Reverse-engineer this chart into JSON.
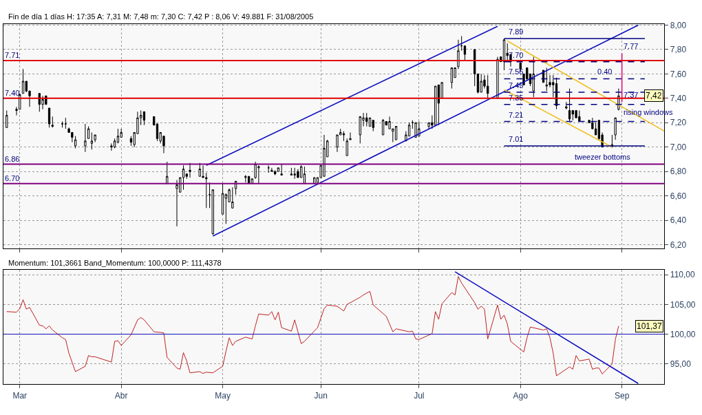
{
  "chart_data": [
    {
      "type": "candlestick",
      "title": "Fin de día 1 días H: 17:35 A: 7,31 M: 7,48 m: 7,30 C: 7,42 P : 8,06 V: 49.881 F: 31/08/2005",
      "color": "#000000",
      "x": [
        "2005-02-25",
        "2005-02-28",
        "2005-03-01",
        "2005-03-02",
        "2005-03-03",
        "2005-03-04",
        "2005-03-07",
        "2005-03-08",
        "2005-03-09",
        "2005-03-10",
        "2005-03-11",
        "2005-03-14",
        "2005-03-15",
        "2005-03-16",
        "2005-03-17",
        "2005-03-18",
        "2005-03-21",
        "2005-03-22",
        "2005-03-23",
        "2005-03-24",
        "2005-03-29",
        "2005-03-30",
        "2005-03-31",
        "2005-04-01",
        "2005-04-04",
        "2005-04-05",
        "2005-04-06",
        "2005-04-07",
        "2005-04-08",
        "2005-04-11",
        "2005-04-12",
        "2005-04-13",
        "2005-04-14",
        "2005-04-15",
        "2005-04-18",
        "2005-04-19",
        "2005-04-20",
        "2005-04-21",
        "2005-04-22",
        "2005-04-25",
        "2005-04-26",
        "2005-04-27",
        "2005-04-28",
        "2005-04-29",
        "2005-05-02",
        "2005-05-03",
        "2005-05-04",
        "2005-05-05",
        "2005-05-06",
        "2005-05-09",
        "2005-05-10",
        "2005-05-11",
        "2005-05-12",
        "2005-05-13",
        "2005-05-16",
        "2005-05-17",
        "2005-05-18",
        "2005-05-19",
        "2005-05-20",
        "2005-05-23",
        "2005-05-24",
        "2005-05-25",
        "2005-05-26",
        "2005-05-27",
        "2005-05-30",
        "2005-05-31",
        "2005-06-01",
        "2005-06-02",
        "2005-06-03",
        "2005-06-06",
        "2005-06-07",
        "2005-06-08",
        "2005-06-09",
        "2005-06-10",
        "2005-06-13",
        "2005-06-14",
        "2005-06-15",
        "2005-06-16",
        "2005-06-17",
        "2005-06-20",
        "2005-06-21",
        "2005-06-22",
        "2005-06-23",
        "2005-06-24",
        "2005-06-27",
        "2005-06-28",
        "2005-06-29",
        "2005-06-30",
        "2005-07-01",
        "2005-07-04",
        "2005-07-05",
        "2005-07-06",
        "2005-07-07",
        "2005-07-08",
        "2005-07-11",
        "2005-07-12",
        "2005-07-13",
        "2005-07-14",
        "2005-07-15",
        "2005-07-18",
        "2005-07-19",
        "2005-07-20",
        "2005-07-21",
        "2005-07-22",
        "2005-07-25",
        "2005-07-26",
        "2005-07-27",
        "2005-07-28",
        "2005-07-29",
        "2005-08-01",
        "2005-08-02",
        "2005-08-03",
        "2005-08-04",
        "2005-08-05",
        "2005-08-08",
        "2005-08-09",
        "2005-08-10",
        "2005-08-11",
        "2005-08-12",
        "2005-08-15",
        "2005-08-16",
        "2005-08-17",
        "2005-08-18",
        "2005-08-19",
        "2005-08-22",
        "2005-08-23",
        "2005-08-24",
        "2005-08-25",
        "2005-08-26",
        "2005-08-29",
        "2005-08-30",
        "2005-08-31"
      ],
      "ohlc": [
        [
          7.16,
          7.3,
          7.16,
          7.26
        ],
        [
          7.31,
          7.33,
          7.26,
          7.3
        ],
        [
          7.31,
          7.44,
          7.31,
          7.43
        ],
        [
          7.44,
          7.64,
          7.44,
          7.54
        ],
        [
          7.54,
          7.54,
          7.45,
          7.46
        ],
        [
          7.46,
          7.46,
          7.33,
          7.42
        ],
        [
          7.44,
          7.44,
          7.29,
          7.35
        ],
        [
          7.35,
          7.42,
          7.31,
          7.39
        ],
        [
          7.42,
          7.42,
          7.35,
          7.35
        ],
        [
          7.32,
          7.32,
          7.16,
          7.19
        ],
        [
          7.18,
          7.25,
          7.16,
          7.17
        ],
        [
          7.19,
          7.21,
          7.16,
          7.19
        ],
        [
          7.19,
          7.24,
          7.15,
          7.19
        ],
        [
          7.15,
          7.16,
          7.12,
          7.12
        ],
        [
          7.12,
          7.12,
          7.04,
          7.08
        ],
        [
          7.01,
          7.09,
          6.99,
          7.06
        ],
        [
          7.01,
          7.19,
          6.96,
          7.05
        ],
        [
          7.07,
          7.17,
          7.07,
          7.15
        ],
        [
          7.03,
          7.12,
          6.98,
          7.05
        ],
        [
          7.06,
          7.1,
          7.04,
          7.1
        ],
        [
          7.01,
          7.03,
          6.97,
          7.0
        ],
        [
          7.0,
          7.07,
          6.99,
          7.05
        ],
        [
          7.04,
          7.15,
          7.03,
          7.09
        ],
        [
          7.08,
          7.15,
          7.08,
          7.12
        ],
        [
          7.07,
          7.09,
          7.01,
          7.04
        ],
        [
          7.02,
          7.12,
          7.0,
          7.12
        ],
        [
          7.11,
          7.29,
          7.11,
          7.24
        ],
        [
          7.24,
          7.3,
          7.18,
          7.26
        ],
        [
          7.29,
          7.29,
          7.18,
          7.22
        ],
        [
          7.25,
          7.25,
          7.18,
          7.18
        ],
        [
          7.19,
          7.19,
          7.05,
          7.07
        ],
        [
          7.05,
          7.12,
          7.03,
          7.12
        ],
        [
          7.09,
          7.09,
          6.95,
          7.01
        ],
        [
          6.7,
          6.88,
          6.7,
          6.76
        ],
        [
          6.66,
          6.73,
          6.35,
          6.69
        ],
        [
          6.63,
          6.75,
          6.63,
          6.75
        ],
        [
          6.75,
          6.85,
          6.65,
          6.82
        ],
        [
          6.78,
          6.78,
          6.74,
          6.76
        ],
        [
          6.81,
          6.87,
          6.75,
          6.8
        ],
        [
          6.76,
          6.87,
          6.76,
          6.82
        ],
        [
          6.76,
          6.85,
          6.75,
          6.75
        ],
        [
          6.75,
          6.79,
          6.5,
          6.74
        ],
        [
          6.61,
          6.71,
          6.5,
          6.61
        ],
        [
          6.29,
          6.65,
          6.28,
          6.65
        ],
        [
          6.45,
          6.7,
          6.45,
          6.62
        ],
        [
          6.58,
          6.62,
          6.37,
          6.61
        ],
        [
          6.55,
          6.66,
          6.55,
          6.65
        ],
        [
          6.5,
          6.67,
          6.5,
          6.55
        ],
        [
          6.66,
          6.72,
          6.61,
          6.72
        ],
        [
          6.75,
          6.77,
          6.71,
          6.76
        ],
        [
          6.76,
          6.76,
          6.7,
          6.7
        ],
        [
          6.7,
          6.74,
          6.7,
          6.74
        ],
        [
          6.75,
          6.88,
          6.74,
          6.86
        ],
        [
          6.83,
          6.85,
          6.7,
          6.84
        ],
        [
          6.83,
          6.85,
          6.79,
          6.83
        ],
        [
          6.8,
          6.83,
          6.8,
          6.81
        ],
        [
          6.8,
          6.81,
          6.77,
          6.78
        ],
        [
          6.8,
          6.83,
          6.8,
          6.83
        ],
        [
          6.77,
          6.86,
          6.77,
          6.78
        ],
        [
          6.77,
          6.83,
          6.77,
          6.78
        ],
        [
          6.77,
          6.83,
          6.74,
          6.78
        ],
        [
          6.8,
          6.82,
          6.75,
          6.75
        ],
        [
          6.75,
          6.85,
          6.75,
          6.84
        ],
        [
          6.7,
          6.84,
          6.7,
          6.78
        ],
        [
          6.7,
          6.75,
          6.7,
          6.75
        ],
        [
          6.71,
          6.75,
          6.71,
          6.75
        ],
        [
          6.75,
          6.85,
          6.75,
          6.85
        ],
        [
          6.76,
          7.1,
          6.76,
          6.99
        ],
        [
          6.92,
          7.06,
          6.92,
          7.05
        ],
        [
          7.0,
          7.1,
          6.96,
          7.1
        ],
        [
          7.1,
          7.15,
          7.1,
          7.12
        ],
        [
          7.11,
          7.13,
          7.05,
          7.1
        ],
        [
          6.93,
          7.07,
          6.93,
          7.05
        ],
        [
          7.06,
          7.12,
          7.06,
          7.07
        ],
        [
          7.1,
          7.25,
          7.03,
          7.25
        ],
        [
          7.22,
          7.28,
          7.17,
          7.24
        ],
        [
          7.24,
          7.28,
          7.17,
          7.21
        ],
        [
          7.17,
          7.24,
          7.17,
          7.24
        ],
        [
          7.22,
          7.22,
          7.13,
          7.16
        ],
        [
          7.1,
          7.23,
          7.1,
          7.22
        ],
        [
          7.21,
          7.21,
          7.18,
          7.18
        ],
        [
          7.15,
          7.25,
          7.15,
          7.21
        ],
        [
          7.13,
          7.15,
          7.04,
          7.15
        ],
        [
          7.06,
          7.17,
          7.06,
          7.17
        ],
        [
          7.05,
          7.13,
          7.05,
          7.1
        ],
        [
          7.09,
          7.2,
          7.09,
          7.18
        ],
        [
          7.2,
          7.22,
          7.15,
          7.2
        ],
        [
          7.08,
          7.2,
          7.08,
          7.2
        ],
        [
          7.09,
          7.21,
          7.09,
          7.15
        ],
        [
          7.17,
          7.2,
          7.15,
          7.2
        ],
        [
          7.2,
          7.26,
          7.15,
          7.18
        ],
        [
          7.18,
          7.5,
          7.18,
          7.5
        ],
        [
          7.51,
          7.51,
          7.18,
          7.36
        ],
        [
          7.4,
          7.53,
          7.4,
          7.53
        ],
        [
          7.53,
          7.65,
          7.48,
          7.65
        ],
        [
          7.57,
          7.65,
          7.57,
          7.65
        ],
        [
          7.66,
          7.88,
          7.64,
          7.79
        ],
        [
          7.83,
          7.91,
          7.79,
          7.83
        ],
        [
          7.83,
          7.83,
          7.71,
          7.76
        ],
        [
          7.8,
          7.8,
          7.5,
          7.6
        ],
        [
          7.6,
          7.6,
          7.44,
          7.45
        ],
        [
          7.45,
          7.6,
          7.45,
          7.54
        ],
        [
          7.55,
          7.59,
          7.48,
          7.5
        ],
        [
          7.5,
          7.59,
          7.4,
          7.44
        ],
        [
          7.4,
          7.74,
          7.4,
          7.72
        ],
        [
          7.74,
          7.74,
          7.7,
          7.7
        ],
        [
          7.7,
          7.89,
          7.63,
          7.88
        ],
        [
          7.77,
          7.85,
          7.7,
          7.75
        ],
        [
          7.76,
          7.76,
          7.66,
          7.7
        ],
        [
          7.69,
          7.69,
          7.62,
          7.64
        ],
        [
          7.6,
          7.6,
          7.51,
          7.51
        ],
        [
          7.65,
          7.65,
          7.54,
          7.56
        ],
        [
          7.6,
          7.6,
          7.5,
          7.52
        ],
        [
          7.46,
          7.74,
          7.41,
          7.6
        ],
        [
          7.63,
          7.63,
          7.53,
          7.53
        ],
        [
          7.5,
          7.65,
          7.46,
          7.51
        ],
        [
          7.53,
          7.59,
          7.49,
          7.51
        ],
        [
          7.53,
          7.59,
          7.41,
          7.51
        ],
        [
          7.52,
          7.57,
          7.31,
          7.34
        ],
        [
          7.33,
          7.37,
          7.31,
          7.32
        ],
        [
          7.3,
          7.48,
          7.21,
          7.23
        ],
        [
          7.3,
          7.3,
          7.22,
          7.27
        ],
        [
          7.3,
          7.3,
          7.24,
          7.24
        ],
        [
          7.25,
          7.3,
          7.21,
          7.21
        ],
        [
          7.22,
          7.22,
          7.2,
          7.2
        ],
        [
          7.2,
          7.24,
          7.15,
          7.15
        ],
        [
          7.15,
          7.2,
          7.1,
          7.1
        ],
        [
          7.22,
          7.22,
          7.06,
          7.07
        ],
        [
          7.1,
          7.12,
          7.0,
          7.0
        ],
        [
          7.0,
          7.1,
          7.0,
          7.02
        ],
        [
          7.1,
          7.24,
          7.06,
          7.24
        ],
        [
          7.31,
          7.48,
          7.3,
          7.42
        ]
      ],
      "series": [
        {
          "type": "line",
          "x": [
            "2005-04-29",
            "2005-09-06"
          ],
          "values": [
            6.27,
            8.0
          ],
          "color": "#1010c0"
        },
        {
          "type": "line",
          "x": [
            "2005-04-27",
            "2005-07-25"
          ],
          "values": [
            6.85,
            7.99
          ],
          "color": "#1010c0"
        },
        {
          "type": "line",
          "x": [
            "2005-07-28",
            "2005-09-14"
          ],
          "values": [
            7.87,
            7.13
          ],
          "color": "#f0c020"
        },
        {
          "type": "line",
          "x": [
            "2005-07-27",
            "2005-08-29"
          ],
          "values": [
            7.47,
            7.0
          ],
          "color": "#f0c020"
        },
        {
          "type": "line",
          "x": [
            "2005-07-27",
            "2005-09-08"
          ],
          "values": [
            7.89,
            7.89
          ],
          "color": "#000080",
          "line_style": "solid"
        },
        {
          "type": "line",
          "x": [
            "2005-07-27",
            "2005-09-08"
          ],
          "values": [
            7.7,
            7.7
          ],
          "color": "#000080",
          "line_style": "dashed"
        },
        {
          "type": "line",
          "x": [
            "2005-07-27",
            "2005-09-08"
          ],
          "values": [
            7.56,
            7.56
          ],
          "color": "#000080",
          "line_style": "dashed"
        },
        {
          "type": "line",
          "x": [
            "2005-07-27",
            "2005-09-08"
          ],
          "values": [
            7.45,
            7.45
          ],
          "color": "#000080",
          "line_style": "dashed"
        },
        {
          "type": "line",
          "x": [
            "2005-07-27",
            "2005-09-08"
          ],
          "values": [
            7.35,
            7.35
          ],
          "color": "#000080",
          "line_style": "dashed"
        },
        {
          "type": "line",
          "x": [
            "2005-07-27",
            "2005-09-08"
          ],
          "values": [
            7.21,
            7.21
          ],
          "color": "#000080",
          "line_style": "dashed"
        },
        {
          "type": "line",
          "x": [
            "2005-07-27",
            "2005-09-08"
          ],
          "values": [
            7.01,
            7.01
          ],
          "color": "#000080",
          "line_style": "solid"
        },
        {
          "type": "line",
          "x": [
            "2005-09-01",
            "2005-09-01"
          ],
          "values": [
            7.37,
            7.77
          ],
          "color": "#e0107a"
        }
      ],
      "ref_lines": [
        {
          "axis": "y",
          "value": 7.71,
          "label": "7.71",
          "color": "#e00000"
        },
        {
          "axis": "y",
          "value": 7.4,
          "label": "7.40",
          "color": "#e00000"
        },
        {
          "axis": "y",
          "value": 6.86,
          "label": "6.86",
          "color": "#800080"
        },
        {
          "axis": "y",
          "value": 6.7,
          "label": "6.70",
          "color": "#800080"
        }
      ],
      "annotations": [
        {
          "text": "7.89",
          "x": "2005-07-28",
          "y": 7.89
        },
        {
          "text": "7.70",
          "x": "2005-07-28",
          "y": 7.7
        },
        {
          "text": "7.56",
          "x": "2005-07-28",
          "y": 7.56
        },
        {
          "text": "7.45",
          "x": "2005-07-28",
          "y": 7.45
        },
        {
          "text": "7.35",
          "x": "2005-07-28",
          "y": 7.35
        },
        {
          "text": "7.21",
          "x": "2005-07-28",
          "y": 7.21
        },
        {
          "text": "7.01",
          "x": "2005-07-28",
          "y": 7.01
        },
        {
          "text": "7.77",
          "x": "2005-09-01",
          "y": 7.77
        },
        {
          "text": "0.40",
          "x": "2005-08-24",
          "y": 7.56
        },
        {
          "text": "7.37",
          "x": "2005-09-01",
          "y": 7.37
        },
        {
          "text": "rising windows",
          "x": "2005-09-01",
          "y": 7.23
        },
        {
          "text": "tweezer bottoms",
          "x": "2005-08-26",
          "y": 7.0
        },
        {
          "text": "7,42",
          "y": 7.42
        }
      ],
      "xlim": [
        "2005-02-24",
        "2005-09-14"
      ],
      "xticks": [
        {
          "value": "2005-03-01",
          "label": null
        },
        {
          "value": "2005-04-01",
          "label": null
        },
        {
          "value": "2005-05-02",
          "label": null
        },
        {
          "value": "2005-06-01",
          "label": null
        },
        {
          "value": "2005-07-01",
          "label": null
        },
        {
          "value": "2005-08-01",
          "label": null
        },
        {
          "value": "2005-09-01",
          "label": null
        }
      ],
      "ylim": [
        6.17,
        8.01
      ],
      "yticks": [
        {
          "value": 6.2,
          "label": "6,20"
        },
        {
          "value": 6.4,
          "label": "6,40"
        },
        {
          "value": 6.6,
          "label": "6,60"
        },
        {
          "value": 6.8,
          "label": "6,80"
        },
        {
          "value": 7.0,
          "label": "7,00"
        },
        {
          "value": 7.2,
          "label": "7,20"
        },
        {
          "value": 7.4,
          "label": "7,40"
        },
        {
          "value": 7.6,
          "label": "7,60"
        },
        {
          "value": 7.8,
          "label": "7,80"
        },
        {
          "value": 8.0,
          "label": "8,00"
        }
      ],
      "tick_labels": "y",
      "grid": true
    },
    {
      "type": "line",
      "title": "Momentum: 101,3661 Band_Momentum: 100,0000 P: 111,4378",
      "series": [
        {
          "color": "#c02020",
          "x": [
            "2005-02-25",
            "2005-02-28",
            "2005-03-01",
            "2005-03-02",
            "2005-03-03",
            "2005-03-04",
            "2005-03-07",
            "2005-03-08",
            "2005-03-09",
            "2005-03-10",
            "2005-03-11",
            "2005-03-14",
            "2005-03-15",
            "2005-03-16",
            "2005-03-18",
            "2005-03-21",
            "2005-03-22",
            "2005-03-23",
            "2005-03-24",
            "2005-03-29",
            "2005-03-30",
            "2005-03-31",
            "2005-04-01",
            "2005-04-04",
            "2005-04-06",
            "2005-04-07",
            "2005-04-08",
            "2005-04-11",
            "2005-04-13",
            "2005-04-14",
            "2005-04-15",
            "2005-04-18",
            "2005-04-19",
            "2005-04-20",
            "2005-04-21",
            "2005-04-22",
            "2005-04-25",
            "2005-04-26",
            "2005-04-27",
            "2005-04-29",
            "2005-05-02",
            "2005-05-03",
            "2005-05-04",
            "2005-05-05",
            "2005-05-06",
            "2005-05-09",
            "2005-05-11",
            "2005-05-12",
            "2005-05-13",
            "2005-05-16",
            "2005-05-17",
            "2005-05-18",
            "2005-05-19",
            "2005-05-20",
            "2005-05-23",
            "2005-05-24",
            "2005-05-25",
            "2005-05-26",
            "2005-05-27",
            "2005-05-31",
            "2005-06-02",
            "2005-06-03",
            "2005-06-06",
            "2005-06-08",
            "2005-06-09",
            "2005-06-13",
            "2005-06-14",
            "2005-06-16",
            "2005-06-17",
            "2005-06-21",
            "2005-06-22",
            "2005-06-23",
            "2005-06-24",
            "2005-06-28",
            "2005-06-29",
            "2005-06-30",
            "2005-07-01",
            "2005-07-05",
            "2005-07-06",
            "2005-07-07",
            "2005-07-08",
            "2005-07-11",
            "2005-07-12",
            "2005-07-13",
            "2005-07-14",
            "2005-07-18",
            "2005-07-19",
            "2005-07-20",
            "2005-07-21",
            "2005-07-22",
            "2005-07-25",
            "2005-07-26",
            "2005-07-27",
            "2005-07-28",
            "2005-07-29",
            "2005-08-02",
            "2005-08-03",
            "2005-08-04",
            "2005-08-08",
            "2005-08-09",
            "2005-08-10",
            "2005-08-11",
            "2005-08-12",
            "2005-08-16",
            "2005-08-17",
            "2005-08-18",
            "2005-08-19",
            "2005-08-22",
            "2005-08-23",
            "2005-08-24",
            "2005-08-25",
            "2005-08-26",
            "2005-08-29",
            "2005-08-30",
            "2005-08-31"
          ],
          "values": [
            103.8,
            103.7,
            104.3,
            105.8,
            104.2,
            104.5,
            101.5,
            101.4,
            100.9,
            101.4,
            100.7,
            99.4,
            99.1,
            96.8,
            93.7,
            94.6,
            96.4,
            96.2,
            96.2,
            95.3,
            98.8,
            98.9,
            98.1,
            99.9,
            102.4,
            102.8,
            102.4,
            100.4,
            100.3,
            100.2,
            96.1,
            94.3,
            94.1,
            96.9,
            95.5,
            93.5,
            93.7,
            93.4,
            93.6,
            93.5,
            94.6,
            97.1,
            99.4,
            98.1,
            98.8,
            99.5,
            99.2,
            101.4,
            103.4,
            103.2,
            103.8,
            102.4,
            103.7,
            101.1,
            100.5,
            102.4,
            100.4,
            98.4,
            98.8,
            101.1,
            104.3,
            104.9,
            104.7,
            103.9,
            105.0,
            106.2,
            106.6,
            107.2,
            104.9,
            103.0,
            101.7,
            100.4,
            100.9,
            100.4,
            100.5,
            99.2,
            99.1,
            100.1,
            103.8,
            102.5,
            105.1,
            107.0,
            106.6,
            109.7,
            108.6,
            105.3,
            104.2,
            104.7,
            104.2,
            99.2,
            104.9,
            102.5,
            103.2,
            101.7,
            98.8,
            97.0,
            99.4,
            101.2,
            100.7,
            100.9,
            99.4,
            96.8,
            93.0,
            94.5,
            94.1,
            96.4,
            95.5,
            95.8,
            94.1,
            94.3,
            94.3,
            93.3,
            95.0,
            99.1,
            101.37
          ]
        },
        {
          "type": "line",
          "x": [
            "2005-07-12",
            "2005-09-06"
          ],
          "values": [
            110.5,
            91.7
          ],
          "color": "#1010c0"
        }
      ],
      "ref_lines": [
        {
          "axis": "y",
          "value": 100,
          "color": "#1010c0"
        }
      ],
      "annotations": [
        {
          "text": "101,37",
          "y": 101.37
        }
      ],
      "xlim": [
        "2005-02-24",
        "2005-09-14"
      ],
      "xticks": [
        {
          "value": "2005-03-01",
          "label": "Mar"
        },
        {
          "value": "2005-04-01",
          "label": "Abr"
        },
        {
          "value": "2005-05-02",
          "label": "May"
        },
        {
          "value": "2005-06-01",
          "label": "Jun"
        },
        {
          "value": "2005-07-01",
          "label": "Jul"
        },
        {
          "value": "2005-08-01",
          "label": "Ago"
        },
        {
          "value": "2005-09-01",
          "label": "Sep"
        }
      ],
      "ylim": [
        91.6,
        110.8
      ],
      "yticks": [
        {
          "value": 95,
          "label": "95,00"
        },
        {
          "value": 100,
          "label": "100,00"
        },
        {
          "value": 105,
          "label": "105,00"
        },
        {
          "value": 110,
          "label": "110,00"
        }
      ],
      "grid": true
    }
  ]
}
